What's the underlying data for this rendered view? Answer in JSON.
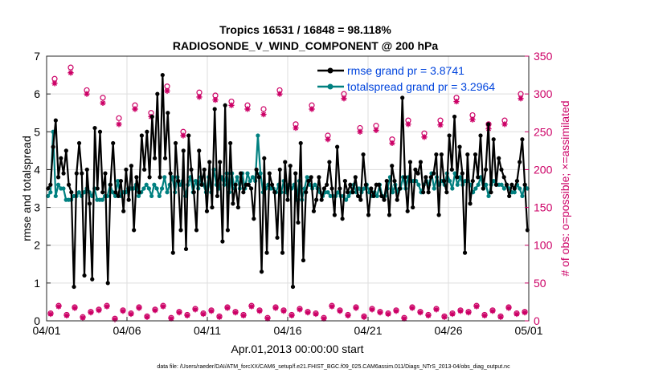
{
  "chart_data": {
    "type": "line",
    "title_line1": "Tropics 16531 / 16848 = 98.118%",
    "title_line2": "RADIOSONDE_V_WIND_COMPONENT @ 200 hPa",
    "xlabel": "Apr.01,2013 00:00:00 start",
    "ylabel": "rmse and totalspread",
    "ylabel_right": "# of obs: o=possible; ×=assimilated",
    "xlim": [
      0,
      30
    ],
    "ylim": [
      0,
      7
    ],
    "ylim_right": [
      0,
      350
    ],
    "x_ticks": [
      0,
      5,
      10,
      15,
      20,
      25,
      30
    ],
    "x_tick_labels": [
      "04/01",
      "04/06",
      "04/11",
      "04/16",
      "04/21",
      "04/26",
      "05/01"
    ],
    "y_ticks": [
      "0",
      "1",
      "2",
      "3",
      "4",
      "5",
      "6",
      "7"
    ],
    "y_ticks_right": [
      "0",
      "50",
      "100",
      "150",
      "200",
      "250",
      "300",
      "350"
    ],
    "grid": true,
    "legend": [
      "rmse grand pr = 3.8741",
      "totalspread grand pr = 3.2964"
    ],
    "colors": {
      "rmse": "#000000",
      "spread": "#008080",
      "obs": "#cc0066",
      "legend_text": "#0044dd",
      "grid": "#dddddd"
    },
    "series": [
      {
        "name": "rmse",
        "values": [
          3.5,
          3.6,
          4.6,
          5.3,
          3.8,
          4.3,
          3.9,
          4.5,
          3.6,
          3.4,
          0.9,
          3.9,
          4.7,
          3.9,
          1.2,
          4.0,
          3.1,
          1.1,
          5.1,
          3.5,
          5.0,
          3.4,
          3.9,
          1.0,
          3.6,
          4.7,
          3.4,
          3.3,
          3.7,
          2.9,
          4.0,
          3.2,
          4.1,
          2.4,
          3.8,
          3.4,
          4.9,
          4.0,
          5.0,
          3.8,
          5.4,
          4.3,
          6.0,
          3.8,
          6.5,
          4.3,
          5.5,
          3.9,
          1.8,
          4.7,
          3.7,
          2.4,
          4.5,
          1.9,
          4.9,
          4.0,
          3.4,
          2.4,
          4.5,
          3.6,
          4.0,
          2.9,
          4.2,
          3.0,
          5.6,
          3.3,
          4.2,
          2.1,
          5.7,
          2.4,
          4.7,
          3.1,
          3.6,
          3.0,
          3.9,
          3.4,
          3.6,
          3.6,
          3.5,
          2.7,
          4.0,
          3.8,
          1.3,
          4.3,
          1.8,
          3.9,
          3.6,
          3.4,
          2.2,
          4.0,
          1.8,
          4.2,
          3.2,
          4.1,
          0.9,
          3.9,
          2.6,
          4.7,
          1.6,
          3.4,
          3.7,
          3.8,
          2.9,
          3.2,
          3.8,
          3.2,
          3.5,
          3.6,
          4.2,
          3.5,
          2.8,
          4.6,
          3.5,
          2.7,
          3.7,
          3.4,
          3.6,
          3.4,
          3.8,
          3.3,
          3.2,
          4.4,
          3.6,
          2.8,
          3.5,
          3.3,
          3.6,
          3.6,
          3.3,
          3.2,
          3.7,
          2.8,
          4.1,
          3.7,
          3.2,
          3.5,
          5.9,
          3.8,
          2.9,
          4.2,
          3.0,
          4.0,
          3.9,
          4.2,
          3.4,
          3.8,
          3.4,
          3.8,
          3.9,
          4.4,
          2.8,
          4.4,
          3.7,
          3.4,
          4.9,
          4.0,
          5.4,
          3.8,
          4.6,
          3.9,
          1.8,
          4.4,
          3.1,
          3.7,
          4.4,
          3.8,
          4.9,
          3.5,
          4.0,
          5.2,
          3.4,
          4.8,
          3.6,
          4.3,
          4.0,
          3.8,
          3.6,
          3.3,
          3.6,
          3.5,
          3.7,
          4.2,
          4.8,
          3.6,
          2.4
        ]
      },
      {
        "name": "totalspread",
        "values": [
          3.3,
          3.4,
          5.0,
          3.3,
          3.6,
          3.5,
          3.5,
          3.2,
          3.2,
          3.2,
          3.3,
          3.3,
          3.4,
          3.3,
          3.4,
          3.5,
          3.4,
          3.3,
          3.5,
          3.2,
          3.2,
          3.2,
          3.3,
          3.3,
          3.6,
          3.4,
          3.3,
          3.7,
          3.3,
          3.4,
          3.4,
          3.5,
          3.5,
          3.5,
          3.6,
          3.3,
          3.4,
          3.5,
          3.6,
          3.5,
          3.3,
          3.6,
          3.5,
          3.3,
          3.5,
          3.8,
          3.4,
          3.6,
          3.8,
          3.4,
          3.8,
          3.6,
          3.7,
          3.3,
          3.6,
          3.8,
          3.4,
          3.7,
          3.5,
          3.8,
          3.6,
          3.4,
          3.8,
          3.4,
          4.0,
          3.6,
          3.5,
          3.8,
          3.6,
          3.9,
          3.4,
          3.9,
          3.5,
          3.8,
          3.5,
          3.9,
          3.5,
          3.9,
          3.7,
          3.8,
          3.7,
          4.9,
          3.9,
          3.4,
          3.5,
          3.6,
          3.5,
          3.5,
          3.4,
          3.6,
          3.4,
          3.7,
          3.4,
          3.6,
          3.5,
          3.6,
          3.2,
          3.7,
          3.2,
          3.5,
          3.8,
          3.6,
          3.5,
          3.6,
          3.5,
          3.4,
          3.3,
          3.4,
          3.4,
          3.3,
          3.3,
          3.3,
          3.4,
          3.3,
          3.3,
          3.2,
          3.3,
          3.4,
          3.6,
          3.4,
          3.5,
          3.4,
          3.5,
          3.6,
          3.4,
          3.3,
          3.4,
          3.3,
          3.6,
          3.3,
          3.3,
          3.5,
          3.8,
          3.4,
          3.6,
          3.4,
          3.5,
          3.8,
          3.5,
          3.8,
          3.7,
          3.7,
          3.7,
          3.6,
          3.4,
          3.6,
          3.7,
          3.6,
          3.9,
          3.5,
          3.8,
          3.6,
          3.7,
          3.6,
          3.9,
          3.7,
          3.5,
          3.9,
          3.6,
          3.8,
          3.6,
          3.7,
          3.7,
          3.6,
          3.4,
          3.5,
          3.6,
          3.8,
          3.5,
          3.6,
          3.3,
          3.6,
          3.7,
          3.6,
          3.6,
          3.6,
          3.5,
          3.6,
          3.5,
          3.4,
          3.4,
          3.6,
          3.5,
          3.3,
          3.6,
          3.5
        ]
      }
    ],
    "obs_possible_daily": [
      320,
      335,
      305,
      295,
      268,
      285,
      275,
      310,
      250,
      302,
      298,
      290,
      285,
      280,
      305,
      260,
      285,
      245,
      300,
      255,
      258,
      240,
      265,
      248,
      265,
      295,
      272,
      260,
      265,
      300
    ],
    "obs_assimilated_daily": [
      314,
      328,
      300,
      288,
      260,
      280,
      270,
      304,
      245,
      296,
      292,
      285,
      280,
      273,
      300,
      255,
      280,
      240,
      294,
      250,
      252,
      235,
      260,
      243,
      259,
      290,
      266,
      254,
      260,
      294
    ],
    "obs_possible_low": [
      10,
      20,
      8,
      18,
      5,
      12,
      15,
      20,
      3,
      14,
      10,
      18,
      6,
      15,
      20,
      4,
      12,
      8,
      16,
      10,
      14,
      6,
      18,
      12,
      8,
      20,
      14,
      4,
      18,
      14,
      8,
      16,
      12,
      10,
      4,
      20,
      14,
      8,
      18,
      6,
      16,
      12,
      10,
      14,
      4,
      18,
      12,
      8,
      16,
      6,
      10,
      14,
      12,
      20,
      8,
      14,
      6,
      18,
      10,
      12
    ],
    "obs_assimilated_low": [
      9,
      19,
      7,
      17,
      4,
      11,
      14,
      19,
      2,
      13,
      9,
      17,
      5,
      14,
      19,
      3,
      11,
      7,
      15,
      9,
      13,
      5,
      17,
      11,
      7,
      19,
      13,
      3,
      17,
      13,
      7,
      15,
      11,
      9,
      3,
      19,
      13,
      7,
      17,
      5,
      15,
      11,
      9,
      13,
      3,
      17,
      11,
      7,
      15,
      5,
      9,
      13,
      11,
      19,
      7,
      13,
      5,
      17,
      9,
      11
    ],
    "footnote": "data file: /Users/raeder/DAI/ATM_forcXX/CAM6_setup/f.e21.FHIST_BGC.f09_025.CAM6assim.011/Diags_NTrS_2013-04/obs_diag_output.nc"
  }
}
